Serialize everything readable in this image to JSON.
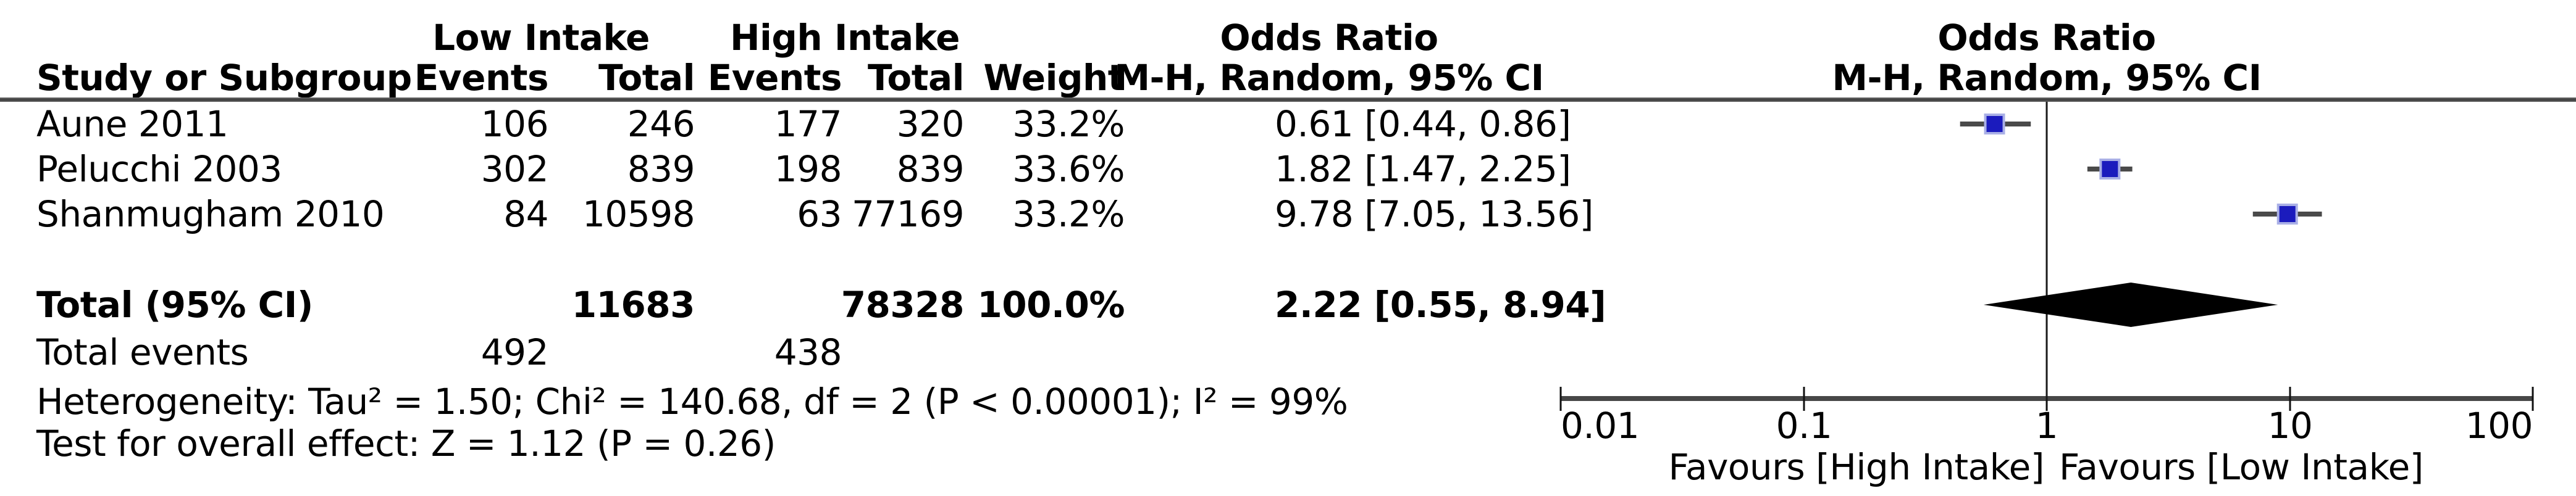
{
  "table": {
    "group1_label": "Low Intake",
    "group2_label": "High Intake",
    "or_col_title": "Odds Ratio",
    "method_label": "M-H, Random, 95% CI",
    "graph_title": "Odds Ratio",
    "graph_method_label": "M-H, Random, 95% CI",
    "col_study": "Study or Subgroup",
    "col_events": "Events",
    "col_total": "Total",
    "col_events2": "Events",
    "col_total2": "Total",
    "col_weight": "Weight",
    "rows": [
      {
        "study": "Aune 2011",
        "events1": "106",
        "total1": "246",
        "events2": "177",
        "total2": "320",
        "weight": "33.2%",
        "or_ci": "0.61 [0.44, 0.86]"
      },
      {
        "study": "Pelucchi 2003",
        "events1": "302",
        "total1": "839",
        "events2": "198",
        "total2": "839",
        "weight": "33.6%",
        "or_ci": "1.82 [1.47, 2.25]"
      },
      {
        "study": "Shanmugham 2010",
        "events1": "84",
        "total1": "10598",
        "events2": "63",
        "total2": "77169",
        "weight": "33.2%",
        "or_ci": "9.78 [7.05, 13.56]"
      }
    ],
    "total": {
      "label": "Total (95% CI)",
      "total1": "11683",
      "total2": "78328",
      "weight": "100.0%",
      "or_ci": "2.22 [0.55, 8.94]"
    },
    "total_events": {
      "label": "Total events",
      "events1": "492",
      "events2": "438"
    },
    "heterogeneity": "Heterogeneity: Tau² = 1.50; Chi² = 140.68, df = 2 (P < 0.00001); I² = 99%",
    "overall_effect": "Test for overall effect: Z = 1.12 (P = 0.26)"
  },
  "plot": {
    "axis_ticks": [
      "0.01",
      "0.1",
      "1",
      "10",
      "100"
    ],
    "favours_left": "Favours [High Intake]",
    "favours_right": "Favours [Low Intake]",
    "marker_fill": "#1b1bbd",
    "marker_halo": "#aab0e6",
    "ci_color": "#4a4a4a",
    "diamond_color": "#000000",
    "axis_color": "#474747",
    "null_line_color": "#1a1a1a"
  },
  "chart_data": {
    "type": "scatter",
    "subtype": "forest-plot",
    "title": "Odds Ratio — M-H, Random, 95% CI",
    "x_scale": "log10",
    "x_ticks": [
      0.01,
      0.1,
      1,
      10,
      100
    ],
    "xlim": [
      0.01,
      100
    ],
    "null_value": 1,
    "studies": [
      {
        "name": "Aune 2011",
        "events_low": 106,
        "total_low": 246,
        "events_high": 177,
        "total_high": 320,
        "weight_pct": 33.2,
        "or": 0.61,
        "ci_low": 0.44,
        "ci_high": 0.86
      },
      {
        "name": "Pelucchi 2003",
        "events_low": 302,
        "total_low": 839,
        "events_high": 198,
        "total_high": 839,
        "weight_pct": 33.6,
        "or": 1.82,
        "ci_low": 1.47,
        "ci_high": 2.25
      },
      {
        "name": "Shanmugham 2010",
        "events_low": 84,
        "total_low": 10598,
        "events_high": 63,
        "total_high": 77169,
        "weight_pct": 33.2,
        "or": 9.78,
        "ci_low": 7.05,
        "ci_high": 13.56
      }
    ],
    "summary": {
      "label": "Total (95% CI)",
      "total_low": 11683,
      "total_high": 78328,
      "weight_pct": 100.0,
      "or": 2.22,
      "ci_low": 0.55,
      "ci_high": 8.94,
      "total_events_low": 492,
      "total_events_high": 438
    },
    "heterogeneity": {
      "tau2": 1.5,
      "chi2": 140.68,
      "df": 2,
      "p": "< 0.00001",
      "i2_pct": 99
    },
    "overall_effect": {
      "z": 1.12,
      "p": 0.26
    },
    "legend_left": "Favours [High Intake]",
    "legend_right": "Favours [Low Intake]"
  }
}
